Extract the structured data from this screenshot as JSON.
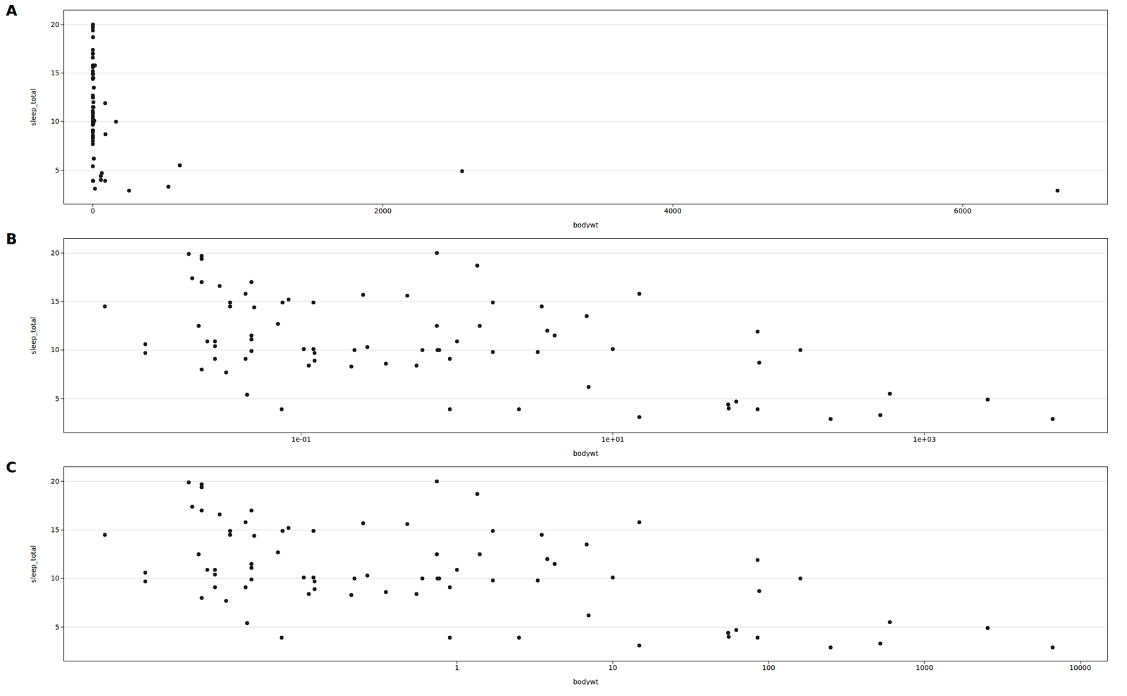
{
  "chart_data": [
    {
      "type": "scatter",
      "title": "A",
      "xlabel": "bodywt",
      "ylabel": "sleep_total",
      "x": [
        0.023,
        0.05,
        0.076,
        0.48,
        1.35,
        0.019,
        0.045,
        0.743,
        0.075,
        3.5,
        0.02,
        14.799,
        0.9,
        0.104,
        1.0,
        0.12,
        521.0,
        10.0,
        0.035,
        0.022,
        0.01,
        0.266,
        0.21,
        0.028,
        0.55,
        4.235,
        6.8,
        0.023,
        0.048,
        0.112,
        0.9,
        0.044,
        0.743,
        2.5,
        55.5,
        0.25,
        0.028,
        0.122,
        0.035,
        0.048,
        0.22,
        0.033,
        0.0055,
        0.023,
        0.769,
        0.071,
        1.4,
        0.025,
        0.083,
        250.0,
        62.0,
        1.7,
        0.35,
        55.0,
        87.1,
        0.6,
        2547.0,
        160.0,
        0.03,
        14.8,
        85.0,
        7.0,
        0.75,
        0.048,
        1.7,
        3.8,
        85.0,
        600.0,
        3.3,
        0.122,
        0.048,
        0.01,
        0.028,
        6654.0,
        0.12,
        0.023,
        0.044
      ],
      "values": [
        17.0,
        14.4,
        14.9,
        15.6,
        18.7,
        19.9,
        5.4,
        20.0,
        3.9,
        14.5,
        17.4,
        3.1,
        3.9,
        10.1,
        10.9,
        14.9,
        3.3,
        10.1,
        14.9,
        12.5,
        9.7,
        10.3,
        8.3,
        9.1,
        8.4,
        11.5,
        13.5,
        19.7,
        17.0,
        8.4,
        9.1,
        15.8,
        12.5,
        3.9,
        4.0,
        15.7,
        10.4,
        9.7,
        14.5,
        11.1,
        10.0,
        7.7,
        14.5,
        19.4,
        10.0,
        12.7,
        12.5,
        10.9,
        15.2,
        2.9,
        4.7,
        9.8,
        8.6,
        4.4,
        8.7,
        10.0,
        4.9,
        10.0,
        16.6,
        15.8,
        3.9,
        6.2,
        10.0,
        11.5,
        14.9,
        12.0,
        11.9,
        5.5,
        9.8,
        8.9,
        9.9,
        10.6,
        10.9,
        2.9,
        10.1,
        8.0,
        9.1
      ],
      "color": "#1a1a1a",
      "xlim": [
        -200,
        7000
      ],
      "xticks": [
        0,
        2000,
        4000,
        6000
      ],
      "ylim": [
        1.5,
        21.5
      ],
      "yticks": [
        5,
        10,
        15,
        20
      ],
      "grid": "y"
    },
    {
      "type": "scatter",
      "title": "B",
      "xlabel": "bodywt",
      "ylabel": "sleep_total",
      "log": "x",
      "x": [
        0.023,
        0.05,
        0.076,
        0.48,
        1.35,
        0.019,
        0.045,
        0.743,
        0.075,
        3.5,
        0.02,
        14.799,
        0.9,
        0.104,
        1.0,
        0.12,
        521.0,
        10.0,
        0.035,
        0.022,
        0.01,
        0.266,
        0.21,
        0.028,
        0.55,
        4.235,
        6.8,
        0.023,
        0.048,
        0.112,
        0.9,
        0.044,
        0.743,
        2.5,
        55.5,
        0.25,
        0.028,
        0.122,
        0.035,
        0.048,
        0.22,
        0.033,
        0.0055,
        0.023,
        0.769,
        0.071,
        1.4,
        0.025,
        0.083,
        250.0,
        62.0,
        1.7,
        0.35,
        55.0,
        87.1,
        0.6,
        2547.0,
        160.0,
        0.03,
        14.8,
        85.0,
        7.0,
        0.75,
        0.048,
        1.7,
        3.8,
        85.0,
        600.0,
        3.3,
        0.122,
        0.048,
        0.01,
        0.028,
        6654.0,
        0.12,
        0.023,
        0.044
      ],
      "values": [
        17.0,
        14.4,
        14.9,
        15.6,
        18.7,
        19.9,
        5.4,
        20.0,
        3.9,
        14.5,
        17.4,
        3.1,
        3.9,
        10.1,
        10.9,
        14.9,
        3.3,
        10.1,
        14.9,
        12.5,
        9.7,
        10.3,
        8.3,
        9.1,
        8.4,
        11.5,
        13.5,
        19.7,
        17.0,
        8.4,
        9.1,
        15.8,
        12.5,
        3.9,
        4.0,
        15.7,
        10.4,
        9.7,
        14.5,
        11.1,
        10.0,
        7.7,
        14.5,
        19.4,
        10.0,
        12.7,
        12.5,
        10.9,
        15.2,
        2.9,
        4.7,
        9.8,
        8.6,
        4.4,
        8.7,
        10.0,
        4.9,
        10.0,
        16.6,
        15.8,
        3.9,
        6.2,
        10.0,
        11.5,
        14.9,
        12.0,
        11.9,
        5.5,
        9.8,
        8.9,
        9.9,
        10.6,
        10.9,
        2.9,
        10.1,
        8.0,
        9.1
      ],
      "color": "#1a1a1a",
      "xlim": [
        0.003,
        15000
      ],
      "xticks": [
        {
          "value": 0.1,
          "label": "1e-01"
        },
        {
          "value": 10.0,
          "label": "1e+01"
        },
        {
          "value": 1000.0,
          "label": "1e+03"
        }
      ],
      "ylim": [
        1.5,
        21.5
      ],
      "yticks": [
        5,
        10,
        15,
        20
      ],
      "grid": "y"
    },
    {
      "type": "scatter",
      "title": "C",
      "xlabel": "bodywt",
      "ylabel": "sleep_total",
      "log": "x",
      "x": [
        0.023,
        0.05,
        0.076,
        0.48,
        1.35,
        0.019,
        0.045,
        0.743,
        0.075,
        3.5,
        0.02,
        14.799,
        0.9,
        0.104,
        1.0,
        0.12,
        521.0,
        10.0,
        0.035,
        0.022,
        0.01,
        0.266,
        0.21,
        0.028,
        0.55,
        4.235,
        6.8,
        0.023,
        0.048,
        0.112,
        0.9,
        0.044,
        0.743,
        2.5,
        55.5,
        0.25,
        0.028,
        0.122,
        0.035,
        0.048,
        0.22,
        0.033,
        0.0055,
        0.023,
        0.769,
        0.071,
        1.4,
        0.025,
        0.083,
        250.0,
        62.0,
        1.7,
        0.35,
        55.0,
        87.1,
        0.6,
        2547.0,
        160.0,
        0.03,
        14.8,
        85.0,
        7.0,
        0.75,
        0.048,
        1.7,
        3.8,
        85.0,
        600.0,
        3.3,
        0.122,
        0.048,
        0.01,
        0.028,
        6654.0,
        0.12,
        0.023,
        0.044
      ],
      "values": [
        17.0,
        14.4,
        14.9,
        15.6,
        18.7,
        19.9,
        5.4,
        20.0,
        3.9,
        14.5,
        17.4,
        3.1,
        3.9,
        10.1,
        10.9,
        14.9,
        3.3,
        10.1,
        14.9,
        12.5,
        9.7,
        10.3,
        8.3,
        9.1,
        8.4,
        11.5,
        13.5,
        19.7,
        17.0,
        8.4,
        9.1,
        15.8,
        12.5,
        3.9,
        4.0,
        15.7,
        10.4,
        9.7,
        14.5,
        11.1,
        10.0,
        7.7,
        14.5,
        19.4,
        10.0,
        12.7,
        12.5,
        10.9,
        15.2,
        2.9,
        4.7,
        9.8,
        8.6,
        4.4,
        8.7,
        10.0,
        4.9,
        10.0,
        16.6,
        15.8,
        3.9,
        6.2,
        10.0,
        11.5,
        14.9,
        12.0,
        11.9,
        5.5,
        9.8,
        8.9,
        9.9,
        10.6,
        10.9,
        2.9,
        10.1,
        8.0,
        9.1
      ],
      "color": "#1a1a1a",
      "xlim": [
        0.003,
        15000
      ],
      "xticks": [
        1,
        10,
        100,
        1000,
        10000
      ],
      "ylim": [
        1.5,
        21.5
      ],
      "yticks": [
        5,
        10,
        15,
        20
      ],
      "grid": "y"
    }
  ]
}
